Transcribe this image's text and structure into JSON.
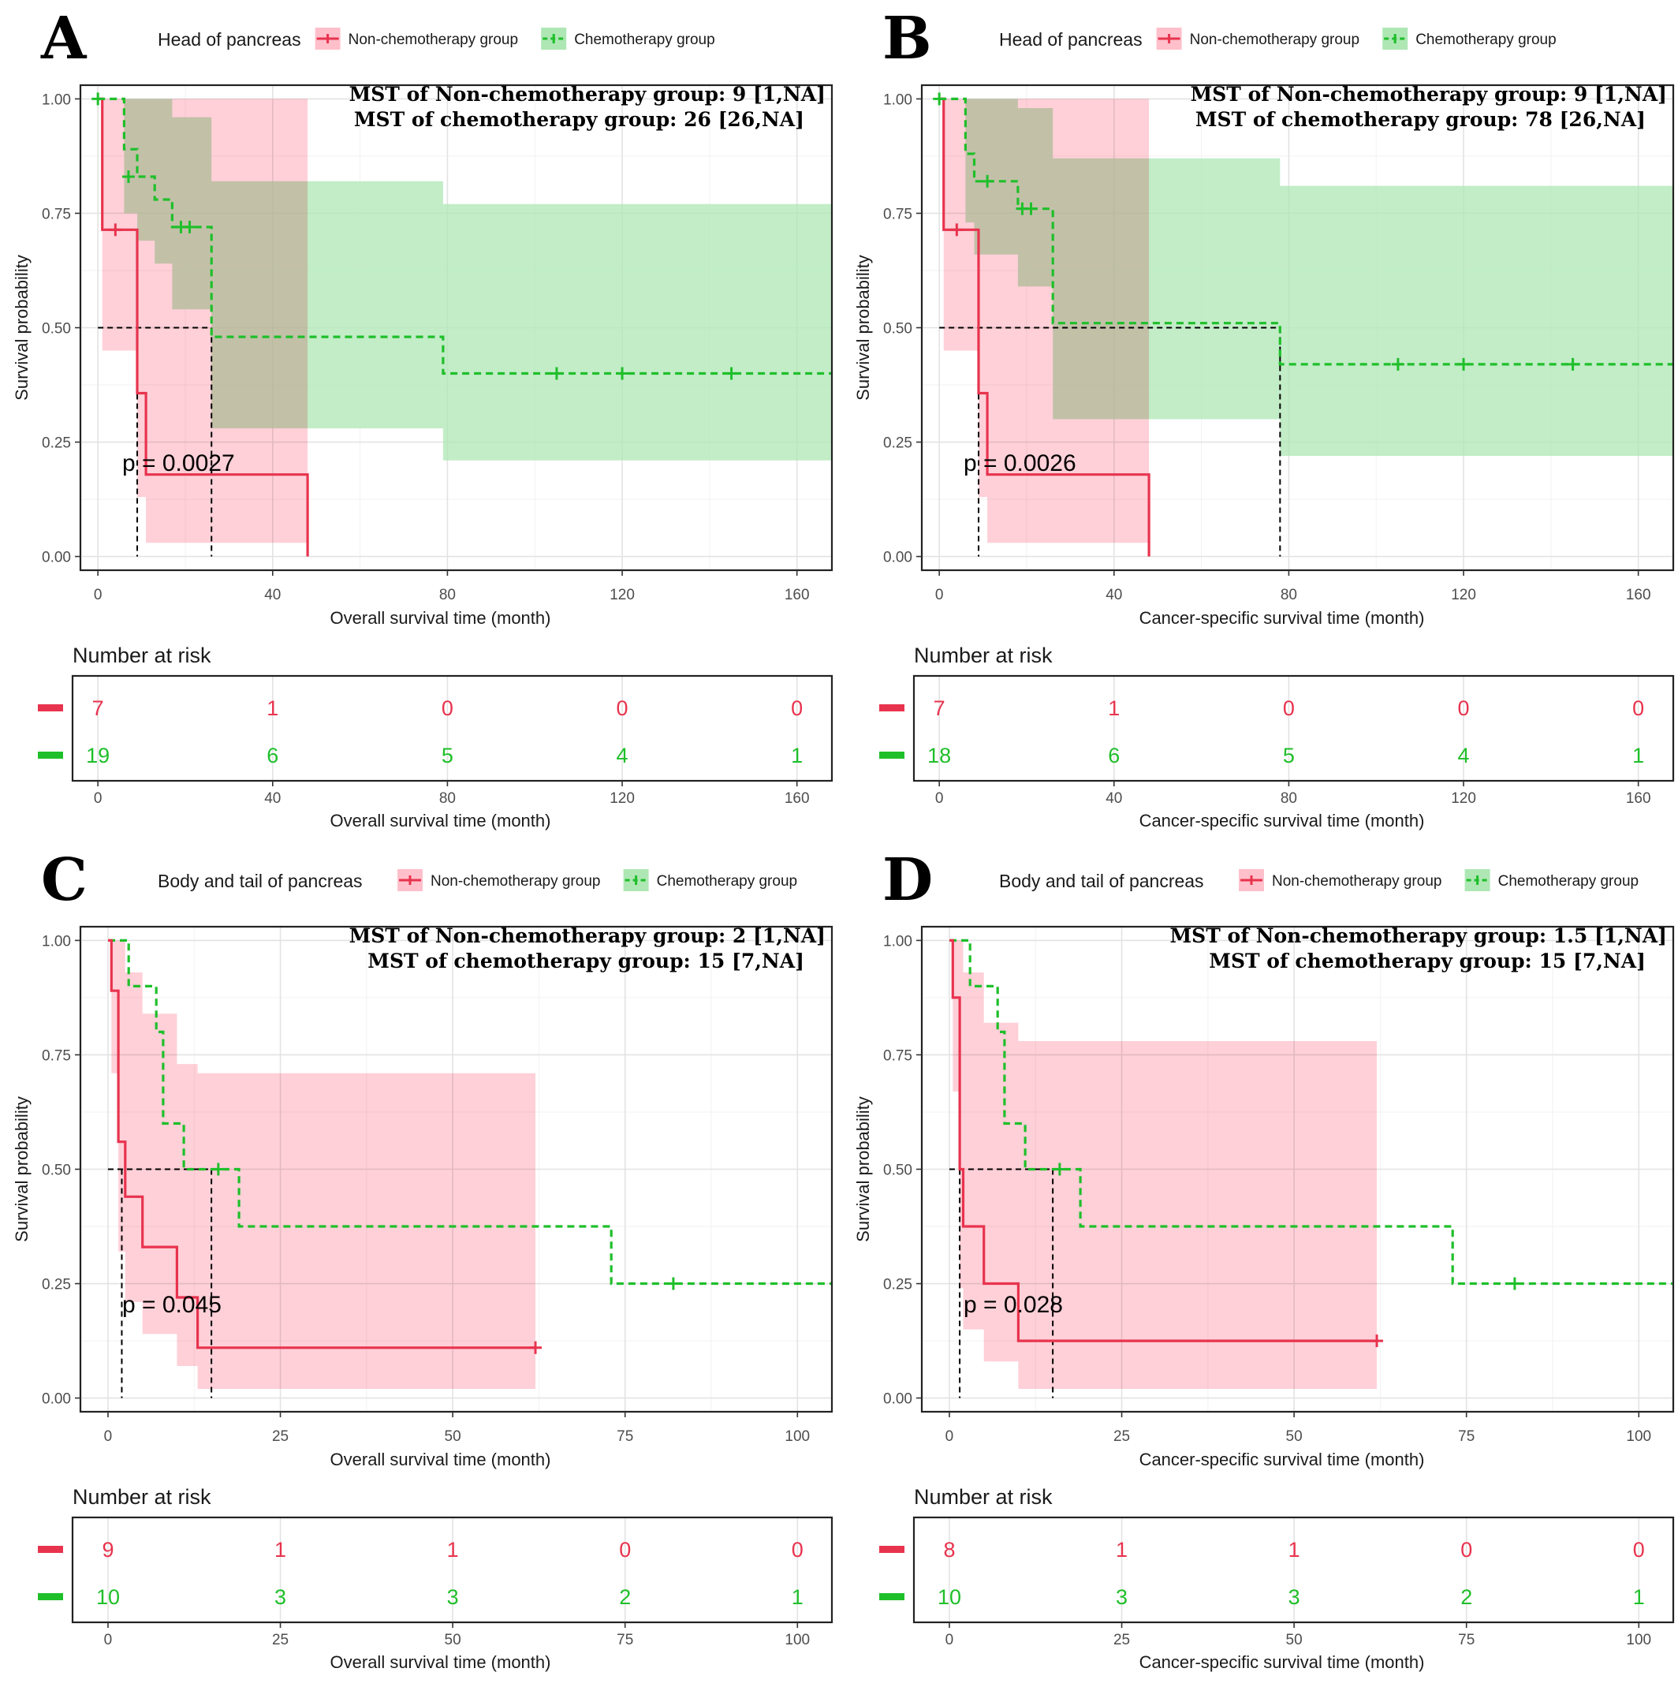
{
  "colors": {
    "non_chemo": "#e8334e",
    "chemo": "#1fbf2a",
    "non_chemo_ci": "#ffc0cb",
    "chemo_ci": "#aee7b4"
  },
  "legend": {
    "non_chemo_label": "Non-chemotherapy group",
    "chemo_label": "Chemotherapy group"
  },
  "risk_table_title": "Number at risk",
  "chart_data": [
    {
      "panel": "A",
      "type": "line",
      "subtype": "kaplan-meier",
      "legend_title": "Head of pancreas",
      "mst_lines": [
        "MST of Non-chemotherapy group: 9 [1,NA]",
        "MST of chemotherapy group: 26 [26,NA]"
      ],
      "p_value": "p = 0.0027",
      "xlabel": "Overall survival time (month)",
      "ylabel": "Survival probability",
      "xlim": [
        -4,
        168
      ],
      "ylim": [
        -0.03,
        1.03
      ],
      "xticks": [
        0,
        40,
        80,
        120,
        160
      ],
      "xtick_labels": [
        "0",
        "40",
        "80",
        "120",
        "160"
      ],
      "yticks": [
        0,
        0.25,
        0.5,
        0.75,
        1
      ],
      "ytick_labels": [
        "0.00",
        "0.25",
        "0.50",
        "0.75",
        "1.00"
      ],
      "median_lines": [
        9,
        26
      ],
      "series": [
        {
          "name": "Non-chemotherapy group",
          "steps": [
            [
              0,
              1
            ],
            [
              1,
              0.714
            ],
            [
              9,
              0.357
            ],
            [
              11,
              0.179
            ],
            [
              48,
              0
            ]
          ],
          "end": 48,
          "ci": [
            [
              0,
              1,
              1
            ],
            [
              1,
              0.45,
              1
            ],
            [
              9,
              0.13,
              1
            ],
            [
              11,
              0.03,
              1
            ],
            [
              48,
              0.03,
              1
            ]
          ],
          "ci_end": 48,
          "censors": [
            [
              4,
              0.714
            ]
          ]
        },
        {
          "name": "Chemotherapy group",
          "steps": [
            [
              0,
              1
            ],
            [
              6,
              0.89
            ],
            [
              9,
              0.83
            ],
            [
              13,
              0.78
            ],
            [
              17,
              0.72
            ],
            [
              26,
              0.48
            ],
            [
              79,
              0.4
            ]
          ],
          "end": 168,
          "ci": [
            [
              0,
              1,
              1
            ],
            [
              6,
              0.75,
              1
            ],
            [
              9,
              0.69,
              1
            ],
            [
              13,
              0.64,
              1
            ],
            [
              17,
              0.54,
              0.96
            ],
            [
              26,
              0.28,
              0.82
            ],
            [
              79,
              0.21,
              0.77
            ]
          ],
          "ci_end": 168,
          "censors": [
            [
              0,
              1
            ],
            [
              7,
              0.83
            ],
            [
              19,
              0.72
            ],
            [
              21,
              0.72
            ],
            [
              105,
              0.4
            ],
            [
              120,
              0.4
            ],
            [
              145,
              0.4
            ]
          ]
        }
      ],
      "risk_table": {
        "xlabel": "Overall survival time (month)",
        "x": [
          0,
          40,
          80,
          120,
          160
        ],
        "non_chemo": [
          "7",
          "1",
          "0",
          "0",
          "0"
        ],
        "chemo": [
          "19",
          "6",
          "5",
          "4",
          "1"
        ]
      }
    },
    {
      "panel": "B",
      "type": "line",
      "subtype": "kaplan-meier",
      "legend_title": "Head of pancreas",
      "mst_lines": [
        "MST of Non-chemotherapy group: 9 [1,NA]",
        "MST of chemotherapy group: 78 [26,NA]"
      ],
      "p_value": "p = 0.0026",
      "xlabel": "Cancer-specific survival time (month)",
      "ylabel": "Survival probability",
      "xlim": [
        -4,
        168
      ],
      "ylim": [
        -0.03,
        1.03
      ],
      "xticks": [
        0,
        40,
        80,
        120,
        160
      ],
      "xtick_labels": [
        "0",
        "40",
        "80",
        "120",
        "160"
      ],
      "yticks": [
        0,
        0.25,
        0.5,
        0.75,
        1
      ],
      "ytick_labels": [
        "0.00",
        "0.25",
        "0.50",
        "0.75",
        "1.00"
      ],
      "median_lines": [
        9,
        78
      ],
      "series": [
        {
          "name": "Non-chemotherapy group",
          "steps": [
            [
              0,
              1
            ],
            [
              1,
              0.714
            ],
            [
              9,
              0.357
            ],
            [
              11,
              0.179
            ],
            [
              48,
              0
            ]
          ],
          "end": 48,
          "ci": [
            [
              0,
              1,
              1
            ],
            [
              1,
              0.45,
              1
            ],
            [
              9,
              0.13,
              1
            ],
            [
              11,
              0.03,
              1
            ],
            [
              48,
              0.03,
              1
            ]
          ],
          "ci_end": 48,
          "censors": [
            [
              4,
              0.714
            ]
          ]
        },
        {
          "name": "Chemotherapy group",
          "steps": [
            [
              0,
              1
            ],
            [
              6,
              0.88
            ],
            [
              8,
              0.82
            ],
            [
              18,
              0.76
            ],
            [
              26,
              0.51
            ],
            [
              78,
              0.42
            ]
          ],
          "end": 168,
          "ci": [
            [
              0,
              1,
              1
            ],
            [
              6,
              0.73,
              1
            ],
            [
              8,
              0.66,
              1
            ],
            [
              18,
              0.59,
              0.98
            ],
            [
              26,
              0.3,
              0.87
            ],
            [
              78,
              0.22,
              0.81
            ]
          ],
          "ci_end": 168,
          "censors": [
            [
              0,
              1
            ],
            [
              11,
              0.82
            ],
            [
              19,
              0.76
            ],
            [
              21,
              0.76
            ],
            [
              105,
              0.42
            ],
            [
              120,
              0.42
            ],
            [
              145,
              0.42
            ]
          ]
        }
      ],
      "risk_table": {
        "xlabel": "Cancer-specific survival time (month)",
        "x": [
          0,
          40,
          80,
          120,
          160
        ],
        "non_chemo": [
          "7",
          "1",
          "0",
          "0",
          "0"
        ],
        "chemo": [
          "18",
          "6",
          "5",
          "4",
          "1"
        ]
      }
    },
    {
      "panel": "C",
      "type": "line",
      "subtype": "kaplan-meier",
      "legend_title": "Body and tail of pancreas",
      "mst_lines": [
        "MST of Non-chemotherapy group: 2 [1,NA]",
        "MST of chemotherapy group: 15 [7,NA]"
      ],
      "p_value": "p = 0.045",
      "xlabel": "Overall survival time (month)",
      "ylabel": "Survival probability",
      "xlim": [
        -4,
        105
      ],
      "ylim": [
        -0.03,
        1.03
      ],
      "xticks": [
        0,
        25,
        50,
        75,
        100
      ],
      "xtick_labels": [
        "0",
        "25",
        "50",
        "75",
        "100"
      ],
      "yticks": [
        0,
        0.25,
        0.5,
        0.75,
        1
      ],
      "ytick_labels": [
        "0.00",
        "0.25",
        "0.50",
        "0.75",
        "1.00"
      ],
      "median_lines": [
        2,
        15
      ],
      "series": [
        {
          "name": "Non-chemotherapy group",
          "steps": [
            [
              0,
              1
            ],
            [
              0.5,
              0.89
            ],
            [
              1.5,
              0.56
            ],
            [
              2.5,
              0.44
            ],
            [
              5,
              0.33
            ],
            [
              10,
              0.22
            ],
            [
              13,
              0.11
            ]
          ],
          "end": 62,
          "ci": [
            [
              0,
              1,
              1
            ],
            [
              0.5,
              0.71,
              1
            ],
            [
              1.5,
              0.32,
              1
            ],
            [
              2.5,
              0.21,
              0.93
            ],
            [
              5,
              0.14,
              0.84
            ],
            [
              10,
              0.07,
              0.73
            ],
            [
              13,
              0.02,
              0.71
            ]
          ],
          "ci_end": 62,
          "censors": [
            [
              62,
              0.11
            ]
          ]
        },
        {
          "name": "Chemotherapy group",
          "steps": [
            [
              0,
              1
            ],
            [
              3,
              0.9
            ],
            [
              7,
              0.8
            ],
            [
              8,
              0.6
            ],
            [
              11,
              0.5
            ],
            [
              19,
              0.375
            ],
            [
              73,
              0.25
            ]
          ],
          "end": 105,
          "censors": [
            [
              16,
              0.5
            ],
            [
              82,
              0.25
            ]
          ]
        }
      ],
      "risk_table": {
        "xlabel": "Overall survival time (month)",
        "x": [
          0,
          25,
          50,
          75,
          100
        ],
        "non_chemo": [
          "9",
          "1",
          "1",
          "0",
          "0"
        ],
        "chemo": [
          "10",
          "3",
          "3",
          "2",
          "1"
        ]
      }
    },
    {
      "panel": "D",
      "type": "line",
      "subtype": "kaplan-meier",
      "legend_title": "Body and tail of pancreas",
      "mst_lines": [
        "MST of Non-chemotherapy group: 1.5 [1,NA]",
        "MST of chemotherapy group: 15 [7,NA]"
      ],
      "p_value": "p = 0.028",
      "xlabel": "Cancer-specific survival time (month)",
      "ylabel": "Survival probability",
      "xlim": [
        -4,
        105
      ],
      "ylim": [
        -0.03,
        1.03
      ],
      "xticks": [
        0,
        25,
        50,
        75,
        100
      ],
      "xtick_labels": [
        "0",
        "25",
        "50",
        "75",
        "100"
      ],
      "yticks": [
        0,
        0.25,
        0.5,
        0.75,
        1
      ],
      "ytick_labels": [
        "0.00",
        "0.25",
        "0.50",
        "0.75",
        "1.00"
      ],
      "median_lines": [
        1.5,
        15
      ],
      "series": [
        {
          "name": "Non-chemotherapy group",
          "steps": [
            [
              0,
              1
            ],
            [
              0.5,
              0.875
            ],
            [
              1.5,
              0.5
            ],
            [
              2,
              0.375
            ],
            [
              5,
              0.25
            ],
            [
              10,
              0.125
            ]
          ],
          "end": 62,
          "ci": [
            [
              0,
              1,
              1
            ],
            [
              0.5,
              0.67,
              1
            ],
            [
              1.5,
              0.24,
              1
            ],
            [
              2,
              0.15,
              0.93
            ],
            [
              5,
              0.08,
              0.82
            ],
            [
              10,
              0.02,
              0.78
            ]
          ],
          "ci_end": 62,
          "censors": [
            [
              62,
              0.125
            ]
          ]
        },
        {
          "name": "Chemotherapy group",
          "steps": [
            [
              0,
              1
            ],
            [
              3,
              0.9
            ],
            [
              7,
              0.8
            ],
            [
              8,
              0.6
            ],
            [
              11,
              0.5
            ],
            [
              19,
              0.375
            ],
            [
              73,
              0.25
            ]
          ],
          "end": 105,
          "censors": [
            [
              16,
              0.5
            ],
            [
              82,
              0.25
            ]
          ]
        }
      ],
      "risk_table": {
        "xlabel": "Cancer-specific survival time (month)",
        "x": [
          0,
          25,
          50,
          75,
          100
        ],
        "non_chemo": [
          "8",
          "1",
          "1",
          "0",
          "0"
        ],
        "chemo": [
          "10",
          "3",
          "3",
          "2",
          "1"
        ]
      }
    }
  ]
}
